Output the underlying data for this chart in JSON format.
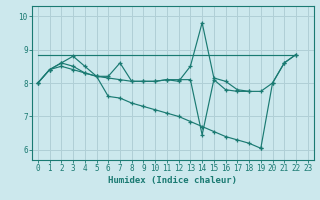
{
  "xlabel": "Humidex (Indice chaleur)",
  "xlim": [
    -0.5,
    23.5
  ],
  "ylim": [
    5.7,
    10.3
  ],
  "yticks": [
    6,
    7,
    8,
    9,
    10
  ],
  "xticks": [
    0,
    1,
    2,
    3,
    4,
    5,
    6,
    7,
    8,
    9,
    10,
    11,
    12,
    13,
    14,
    15,
    16,
    17,
    18,
    19,
    20,
    21,
    22,
    23
  ],
  "bg_color": "#cce8ed",
  "grid_color": "#b0cfd6",
  "line_color": "#1a7a72",
  "hline_y": 8.85,
  "hline_x0": 0,
  "hline_x1": 22,
  "line1_x": [
    0,
    1,
    2,
    3,
    4,
    5,
    6,
    7,
    8,
    9,
    10,
    11,
    12,
    13,
    14,
    15,
    16,
    17,
    18,
    19,
    20,
    21,
    22
  ],
  "line1_y": [
    8.0,
    8.4,
    8.6,
    8.8,
    8.5,
    8.2,
    8.2,
    8.6,
    8.05,
    8.05,
    8.05,
    8.1,
    8.05,
    8.5,
    9.8,
    8.15,
    8.05,
    7.8,
    7.75,
    7.75,
    8.0,
    8.6,
    8.85
  ],
  "line2_x": [
    0,
    1,
    2,
    3,
    4,
    5,
    6,
    7,
    8,
    9,
    10,
    11,
    12,
    13,
    14,
    15,
    16,
    17,
    18
  ],
  "line2_y": [
    8.0,
    8.4,
    8.6,
    8.5,
    8.3,
    8.2,
    8.15,
    8.1,
    8.05,
    8.05,
    8.05,
    8.1,
    8.1,
    8.1,
    6.45,
    8.1,
    7.8,
    7.75,
    7.75
  ],
  "line3_x": [
    0,
    1,
    2,
    3,
    4,
    5,
    6,
    7,
    8,
    9,
    10,
    11,
    12,
    13,
    14,
    15,
    16,
    17,
    18,
    19,
    20,
    21,
    22
  ],
  "line3_y": [
    8.0,
    8.4,
    8.5,
    8.4,
    8.3,
    8.2,
    7.6,
    7.55,
    7.4,
    7.3,
    7.2,
    7.1,
    7.0,
    6.85,
    6.7,
    6.55,
    6.4,
    6.3,
    6.2,
    6.05,
    null,
    null,
    null
  ],
  "line4_x": [
    19,
    20,
    21,
    22
  ],
  "line4_y": [
    6.05,
    8.0,
    8.6,
    8.85
  ]
}
